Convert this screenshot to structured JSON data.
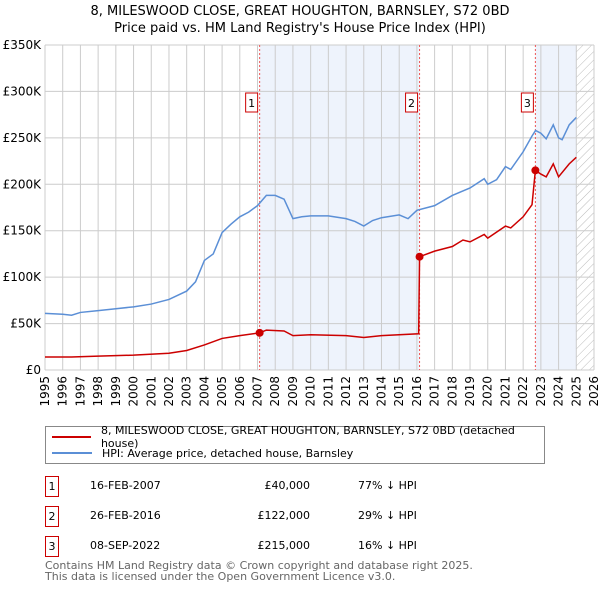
{
  "chart_data": {
    "type": "line",
    "title": "8, MILESWOOD CLOSE, GREAT HOUGHTON, BARNSLEY, S72 0BD",
    "subtitle": "Price paid vs. HM Land Registry's House Price Index (HPI)",
    "xlim": [
      1995,
      2026
    ],
    "ylim": [
      0,
      350000
    ],
    "x_ticks": [
      "1995",
      "1996",
      "1997",
      "1998",
      "1999",
      "2000",
      "2001",
      "2002",
      "2003",
      "2004",
      "2005",
      "2006",
      "2007",
      "2008",
      "2009",
      "2010",
      "2011",
      "2012",
      "2013",
      "2014",
      "2015",
      "2016",
      "2017",
      "2018",
      "2019",
      "2020",
      "2021",
      "2022",
      "2023",
      "2024",
      "2025",
      "2026"
    ],
    "y_ticks": [
      {
        "v": 0,
        "label": "£0"
      },
      {
        "v": 50000,
        "label": "£50K"
      },
      {
        "v": 100000,
        "label": "£100K"
      },
      {
        "v": 150000,
        "label": "£150K"
      },
      {
        "v": 200000,
        "label": "£200K"
      },
      {
        "v": 250000,
        "label": "£250K"
      },
      {
        "v": 300000,
        "label": "£300K"
      },
      {
        "v": 350000,
        "label": "£350K"
      }
    ],
    "grid": true,
    "shaded_ranges": [
      [
        2007.12,
        2016.15
      ],
      [
        2022.69,
        2025.0
      ]
    ],
    "hatched_from": 2025.0,
    "series": [
      {
        "name": "8, MILESWOOD CLOSE, GREAT HOUGHTON, BARNSLEY, S72 0BD (detached house)",
        "color": "#cc0000",
        "points": [
          [
            1995,
            14000
          ],
          [
            1996.5,
            14000
          ],
          [
            1998,
            15000
          ],
          [
            2000,
            16000
          ],
          [
            2002,
            18000
          ],
          [
            2003,
            21000
          ],
          [
            2004,
            27000
          ],
          [
            2005,
            34000
          ],
          [
            2006,
            37000
          ],
          [
            2007.12,
            40000
          ],
          [
            2007.5,
            43000
          ],
          [
            2008.5,
            42000
          ],
          [
            2009,
            37000
          ],
          [
            2010,
            38000
          ],
          [
            2012,
            37000
          ],
          [
            2013,
            35000
          ],
          [
            2014,
            37000
          ],
          [
            2016.1,
            39000
          ],
          [
            2016.15,
            122000
          ],
          [
            2017,
            128000
          ],
          [
            2018,
            133000
          ],
          [
            2018.6,
            140000
          ],
          [
            2019,
            138000
          ],
          [
            2019.8,
            146000
          ],
          [
            2020,
            142000
          ],
          [
            2021,
            155000
          ],
          [
            2021.3,
            153000
          ],
          [
            2022,
            165000
          ],
          [
            2022.5,
            178000
          ],
          [
            2022.69,
            215000
          ],
          [
            2023,
            211000
          ],
          [
            2023.3,
            208000
          ],
          [
            2023.7,
            222000
          ],
          [
            2024,
            208000
          ],
          [
            2024.6,
            222000
          ],
          [
            2025,
            229000
          ]
        ]
      },
      {
        "name": "HPI: Average price, detached house, Barnsley",
        "color": "#5b8fd6",
        "points": [
          [
            1995,
            61000
          ],
          [
            1996,
            60000
          ],
          [
            1996.5,
            59000
          ],
          [
            1997,
            62000
          ],
          [
            1998,
            64000
          ],
          [
            1999,
            66000
          ],
          [
            2000,
            68000
          ],
          [
            2001,
            71000
          ],
          [
            2002,
            76000
          ],
          [
            2003,
            85000
          ],
          [
            2003.5,
            95000
          ],
          [
            2004,
            118000
          ],
          [
            2004.5,
            125000
          ],
          [
            2005,
            148000
          ],
          [
            2005.5,
            157000
          ],
          [
            2006,
            165000
          ],
          [
            2006.5,
            170000
          ],
          [
            2007,
            177000
          ],
          [
            2007.5,
            188000
          ],
          [
            2008,
            188000
          ],
          [
            2008.5,
            184000
          ],
          [
            2009,
            163000
          ],
          [
            2009.5,
            165000
          ],
          [
            2010,
            166000
          ],
          [
            2011,
            166000
          ],
          [
            2012,
            163000
          ],
          [
            2012.5,
            160000
          ],
          [
            2013,
            155000
          ],
          [
            2013.5,
            161000
          ],
          [
            2014,
            164000
          ],
          [
            2015,
            167000
          ],
          [
            2015.5,
            163000
          ],
          [
            2016,
            172000
          ],
          [
            2017,
            177000
          ],
          [
            2018,
            188000
          ],
          [
            2019,
            196000
          ],
          [
            2019.8,
            206000
          ],
          [
            2020,
            200000
          ],
          [
            2020.5,
            205000
          ],
          [
            2021,
            219000
          ],
          [
            2021.3,
            216000
          ],
          [
            2022,
            235000
          ],
          [
            2022.5,
            252000
          ],
          [
            2022.7,
            258000
          ],
          [
            2023,
            255000
          ],
          [
            2023.3,
            249000
          ],
          [
            2023.7,
            264000
          ],
          [
            2024,
            250000
          ],
          [
            2024.2,
            248000
          ],
          [
            2024.6,
            264000
          ],
          [
            2025,
            272000
          ]
        ]
      }
    ],
    "sales": [
      {
        "label": "1",
        "x": 2007.12,
        "y": 40000
      },
      {
        "label": "2",
        "x": 2016.15,
        "y": 122000
      },
      {
        "label": "3",
        "x": 2022.69,
        "y": 215000
      }
    ]
  },
  "title_line1": "8, MILESWOOD CLOSE, GREAT HOUGHTON, BARNSLEY, S72 0BD",
  "title_line2": "Price paid vs. HM Land Registry's House Price Index (HPI)",
  "legend": [
    "8, MILESWOOD CLOSE, GREAT HOUGHTON, BARNSLEY, S72 0BD (detached house)",
    "HPI: Average price, detached house, Barnsley"
  ],
  "transactions": [
    {
      "num": "1",
      "date": "16-FEB-2007",
      "price": "£40,000",
      "hpi": "77% ↓ HPI"
    },
    {
      "num": "2",
      "date": "26-FEB-2016",
      "price": "£122,000",
      "hpi": "29% ↓ HPI"
    },
    {
      "num": "3",
      "date": "08-SEP-2022",
      "price": "£215,000",
      "hpi": "16% ↓ HPI"
    }
  ],
  "footer": [
    "Contains HM Land Registry data © Crown copyright and database right 2025.",
    "This data is licensed under the Open Government Licence v3.0."
  ]
}
